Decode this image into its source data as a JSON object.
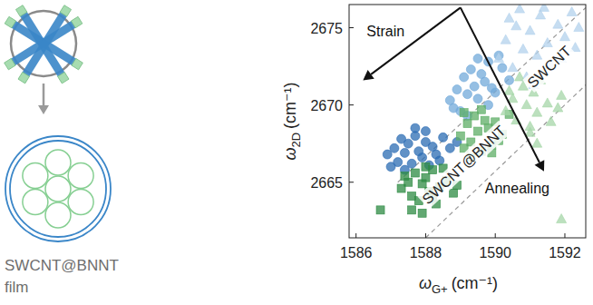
{
  "chart_data": {
    "type": "scatter",
    "x_label": {
      "symbol": "ω",
      "sub": "G+",
      "unit": "(cm⁻¹)"
    },
    "y_label": {
      "symbol": "ω",
      "sub": "2D",
      "unit": "(cm⁻¹)"
    },
    "xlim": [
      1585.8,
      1592.6
    ],
    "ylim": [
      2661.4,
      2676.5
    ],
    "xticks": [
      1586,
      1588,
      1590,
      1592
    ],
    "yticks": [
      2665,
      2670,
      2675
    ],
    "grid": false,
    "series": [
      {
        "color": "#2b6cb3",
        "marker": "circle",
        "x": [
          1586.9,
          1587.1,
          1587.2,
          1587.3,
          1587.4,
          1587.5,
          1587.6,
          1587.7,
          1587.8,
          1587.9,
          1588.0,
          1588.1,
          1588.2,
          1588.3,
          1588.5,
          1588.7,
          1587.4,
          1587.7,
          1588.0,
          1588.4,
          1587.0,
          1588.9
        ],
        "values": [
          2666.8,
          2667.2,
          2666.3,
          2667.8,
          2666.9,
          2667.5,
          2666.2,
          2668.0,
          2667.0,
          2666.6,
          2667.6,
          2666.1,
          2667.3,
          2666.8,
          2667.9,
          2667.2,
          2665.8,
          2668.5,
          2668.3,
          2666.4,
          2666.0,
          2667.6
        ]
      },
      {
        "color": "#2e8b43",
        "marker": "square",
        "x": [
          1587.3,
          1587.5,
          1587.6,
          1587.7,
          1587.8,
          1587.9,
          1588.0,
          1588.1,
          1588.2,
          1588.3,
          1588.4,
          1588.6,
          1588.8,
          1587.6,
          1588.0,
          1588.5,
          1587.9,
          1588.2,
          1587.4,
          1588.9,
          1586.7
        ],
        "values": [
          2664.6,
          2665.0,
          2664.1,
          2665.6,
          2663.8,
          2664.9,
          2665.3,
          2664.4,
          2665.8,
          2663.6,
          2664.7,
          2665.1,
          2664.3,
          2663.2,
          2666.0,
          2665.9,
          2663.0,
          2664.0,
          2665.4,
          2664.8,
          2663.2
        ]
      },
      {
        "color": "#72a9da",
        "marker": "circle",
        "x": [
          1588.7,
          1588.9,
          1589.0,
          1589.1,
          1589.2,
          1589.3,
          1589.4,
          1589.5,
          1589.6,
          1589.7,
          1589.8,
          1589.9,
          1590.0,
          1590.2,
          1590.4,
          1589.2,
          1589.5,
          1589.8,
          1588.8,
          1590.1
        ],
        "values": [
          2670.3,
          2671.0,
          2669.6,
          2671.8,
          2670.7,
          2672.3,
          2671.2,
          2670.4,
          2672.0,
          2671.5,
          2672.8,
          2671.1,
          2670.8,
          2672.4,
          2671.6,
          2669.3,
          2673.0,
          2670.0,
          2669.8,
          2673.2
        ]
      },
      {
        "color": "#5eae66",
        "marker": "square",
        "x": [
          1589.0,
          1589.1,
          1589.2,
          1589.3,
          1589.4,
          1589.5,
          1589.6,
          1589.7,
          1589.8,
          1589.9,
          1590.0,
          1590.2,
          1590.4,
          1589.3,
          1589.6,
          1589.9,
          1589.1,
          1590.1
        ],
        "values": [
          2668.0,
          2667.2,
          2668.8,
          2667.6,
          2669.3,
          2668.3,
          2667.0,
          2669.0,
          2668.5,
          2667.4,
          2668.9,
          2668.1,
          2669.4,
          2666.6,
          2669.7,
          2666.9,
          2669.5,
          2667.7
        ]
      },
      {
        "color": "#b3d1ec",
        "marker": "triangle",
        "x": [
          1590.1,
          1590.3,
          1590.5,
          1590.6,
          1590.8,
          1590.9,
          1591.0,
          1591.2,
          1591.3,
          1591.5,
          1591.6,
          1591.8,
          1592.0,
          1592.2,
          1592.4,
          1590.7,
          1591.1,
          1591.4,
          1591.9,
          1590.4,
          1592.3
        ],
        "values": [
          2673.0,
          2674.2,
          2672.4,
          2675.1,
          2673.6,
          2671.8,
          2674.8,
          2673.2,
          2675.8,
          2674.0,
          2672.6,
          2675.2,
          2674.4,
          2676.0,
          2675.0,
          2676.2,
          2671.3,
          2676.3,
          2673.0,
          2675.6,
          2673.7
        ]
      },
      {
        "color": "#a6d6a8",
        "marker": "triangle",
        "x": [
          1590.3,
          1590.5,
          1590.6,
          1590.8,
          1590.9,
          1591.0,
          1591.1,
          1591.2,
          1591.3,
          1591.5,
          1591.6,
          1591.8,
          1591.9,
          1590.7,
          1591.0,
          1591.9,
          1590.4,
          1591.2
        ],
        "values": [
          2669.6,
          2670.4,
          2669.0,
          2671.2,
          2670.0,
          2668.6,
          2670.8,
          2669.5,
          2671.6,
          2670.1,
          2668.9,
          2669.8,
          2662.6,
          2671.8,
          2668.2,
          2670.6,
          2670.9,
          2667.5
        ]
      }
    ],
    "guide_lines": [
      {
        "x": [
          1587.2,
          1592.6
        ],
        "y": [
          2665.0,
          2676.3
        ],
        "line_style": "dashed"
      },
      {
        "x": [
          1588.0,
          1592.6
        ],
        "y": [
          2661.4,
          2671.3
        ],
        "line_style": "dashed"
      }
    ],
    "arrows": [
      {
        "text": "Strain",
        "from": [
          1589.0,
          2676.3
        ],
        "to": [
          1586.2,
          2671.6
        ]
      },
      {
        "text": "Annealing",
        "from": [
          1589.0,
          2676.3
        ],
        "to": [
          1591.4,
          2665.7
        ]
      }
    ],
    "labels": [
      "SWCNT",
      "SWCNT@BNNT"
    ]
  },
  "schematic": {
    "label_lines": [
      "SWCNT@BNNT",
      "film"
    ]
  }
}
